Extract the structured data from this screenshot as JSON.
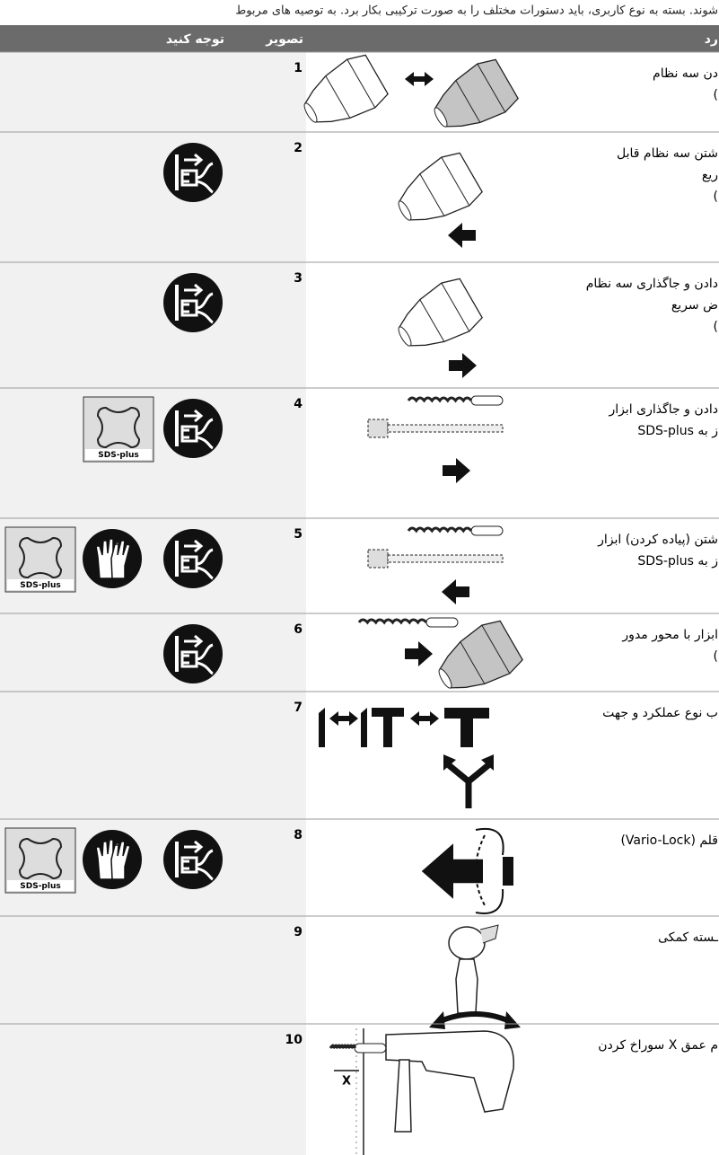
{
  "intro": "شوند. بسته به نوع کاربری، باید دستورات مختلف را به صورت ترکیبی بکار برد. به توصیه های مربوط",
  "header": {
    "col_text": "رد",
    "col_picture": "تصویر",
    "col_note": "توجه کنید"
  },
  "icon_label": "SDS-plus",
  "rows": [
    {
      "number": "1",
      "text": [
        "دن سه نظام",
        ")"
      ]
    },
    {
      "number": "2",
      "text": [
        "شتن سه نظام قابل",
        "ریع",
        ")"
      ]
    },
    {
      "number": "3",
      "text": [
        "دادن و جاگذاری سه نظام",
        "ض سریع",
        ")"
      ]
    },
    {
      "number": "4",
      "text": [
        "دادن و جاگذاری ابزار",
        "ز به SDS-plus"
      ]
    },
    {
      "number": "5",
      "text": [
        "شتن (پیاده کردن) ابزار",
        "ز به SDS-plus"
      ]
    },
    {
      "number": "6",
      "text": [
        "ابزار با محور مدور",
        ")"
      ]
    },
    {
      "number": "7",
      "text": [
        "ب نوع عملکرد و جهت"
      ]
    },
    {
      "number": "8",
      "text": [
        "قلم (Vario-Lock)"
      ]
    },
    {
      "number": "9",
      "text": [
        "ـسته کمکی"
      ]
    },
    {
      "number": "10",
      "text": [
        "م عمق X سوراخ کردن"
      ],
      "figure_label": "X"
    }
  ]
}
